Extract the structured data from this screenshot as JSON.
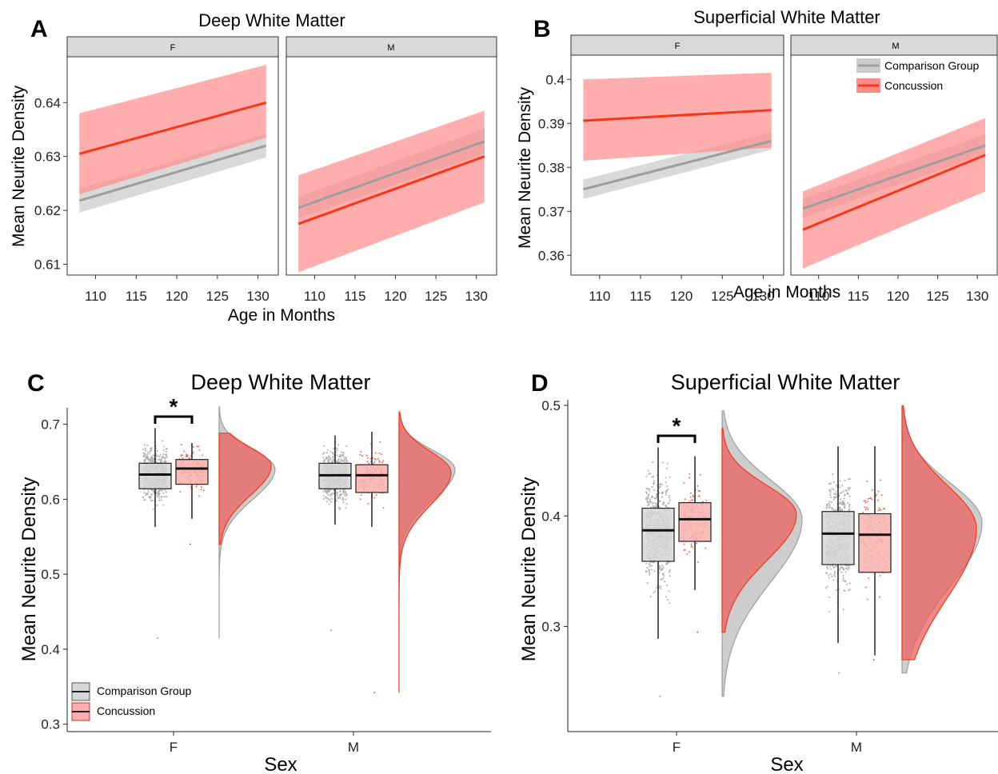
{
  "colors": {
    "comparison": "#9e9e9e",
    "comparison_fill": "#cccccc",
    "concussion": "#f8371a",
    "concussion_fill": "#ff8a8a",
    "comparison_box_fill": "#d6d6d6",
    "concussion_box_fill": "#f7b0ad",
    "strip_fill": "#d9d9d9"
  },
  "panels": {
    "A": {
      "label": "A",
      "title": "Deep White Matter",
      "ylabel": "Mean Neurite Density",
      "xlabel": "Age in Months",
      "facets": [
        "F",
        "M"
      ]
    },
    "B": {
      "label": "B",
      "title": "Superficial White Matter",
      "ylabel": "Mean Neurite Density",
      "xlabel": "Age in Months",
      "facets": [
        "F",
        "M"
      ]
    },
    "C": {
      "label": "C",
      "title": "Deep White Matter",
      "ylabel": "Mean Neurite Density",
      "xlabel": "Sex",
      "significance": "*"
    },
    "D": {
      "label": "D",
      "title": "Superficial White Matter",
      "ylabel": "Mean Neurite Density",
      "xlabel": "Sex",
      "significance": "*"
    }
  },
  "legend": {
    "comparison": "Comparison Group",
    "concussion": "Concussion"
  },
  "chart_data": [
    {
      "panel": "A",
      "type": "line",
      "title": "Deep White Matter",
      "xlabel": "Age in Months",
      "ylabel": "Mean Neurite Density",
      "xlim": [
        106.5,
        132.5
      ],
      "ylim": [
        0.608,
        0.6485
      ],
      "xticks": [
        110,
        115,
        120,
        125,
        130
      ],
      "yticks": [
        0.61,
        0.62,
        0.63,
        0.64
      ],
      "facets": [
        {
          "name": "F",
          "series": [
            {
              "name": "Comparison Group",
              "x": [
                108,
                131
              ],
              "y": [
                0.6218,
                0.632
              ],
              "lower": [
                0.6196,
                0.6298
              ],
              "upper": [
                0.624,
                0.6342
              ]
            },
            {
              "name": "Concussion",
              "x": [
                108,
                131
              ],
              "y": [
                0.6305,
                0.64
              ],
              "lower": [
                0.623,
                0.6335
              ],
              "upper": [
                0.638,
                0.647
              ]
            }
          ]
        },
        {
          "name": "M",
          "series": [
            {
              "name": "Comparison Group",
              "x": [
                108,
                131
              ],
              "y": [
                0.6205,
                0.6328
              ],
              "lower": [
                0.6185,
                0.6305
              ],
              "upper": [
                0.6225,
                0.6352
              ]
            },
            {
              "name": "Concussion",
              "x": [
                108,
                131
              ],
              "y": [
                0.6175,
                0.63
              ],
              "lower": [
                0.6085,
                0.6215
              ],
              "upper": [
                0.6265,
                0.6385
              ]
            }
          ]
        }
      ]
    },
    {
      "panel": "B",
      "type": "line",
      "title": "Superficial White Matter",
      "xlabel": "Age in Months",
      "ylabel": "Mean Neurite Density",
      "xlim": [
        106.5,
        132.5
      ],
      "ylim": [
        0.3555,
        0.4055
      ],
      "xticks": [
        110,
        115,
        120,
        125,
        130
      ],
      "yticks": [
        0.36,
        0.37,
        0.38,
        0.39,
        0.4
      ],
      "legend_position": "top-right",
      "facets": [
        {
          "name": "F",
          "series": [
            {
              "name": "Comparison Group",
              "x": [
                108,
                131
              ],
              "y": [
                0.375,
                0.386
              ],
              "lower": [
                0.3728,
                0.384
              ],
              "upper": [
                0.3772,
                0.388
              ]
            },
            {
              "name": "Concussion",
              "x": [
                108,
                131
              ],
              "y": [
                0.3906,
                0.393
              ],
              "lower": [
                0.3815,
                0.3845
              ],
              "upper": [
                0.4,
                0.4015
              ]
            }
          ]
        },
        {
          "name": "M",
          "series": [
            {
              "name": "Comparison Group",
              "x": [
                108,
                131
              ],
              "y": [
                0.3706,
                0.385
              ],
              "lower": [
                0.3685,
                0.383
              ],
              "upper": [
                0.3728,
                0.3875
              ]
            },
            {
              "name": "Concussion",
              "x": [
                108,
                131
              ],
              "y": [
                0.3658,
                0.3828
              ],
              "lower": [
                0.357,
                0.3745
              ],
              "upper": [
                0.3745,
                0.3912
              ]
            }
          ]
        }
      ]
    },
    {
      "panel": "C",
      "type": "box",
      "title": "Deep White Matter",
      "xlabel": "Sex",
      "ylabel": "Mean Neurite Density",
      "categories": [
        "F",
        "M"
      ],
      "ylim": [
        0.29,
        0.722
      ],
      "yticks": [
        0.3,
        0.4,
        0.5,
        0.6,
        0.7
      ],
      "legend_position": "bottom-left",
      "series": [
        {
          "name": "Comparison Group",
          "boxes": [
            {
              "category": "F",
              "min": 0.563,
              "q1": 0.614,
              "median": 0.633,
              "q3": 0.648,
              "max": 0.695,
              "outlier_low": 0.415
            },
            {
              "category": "M",
              "min": 0.566,
              "q1": 0.614,
              "median": 0.632,
              "q3": 0.648,
              "max": 0.685,
              "outlier_low": 0.425
            }
          ],
          "density_peak": 0.64
        },
        {
          "name": "Concussion",
          "boxes": [
            {
              "category": "F",
              "min": 0.574,
              "q1": 0.62,
              "median": 0.641,
              "q3": 0.653,
              "max": 0.675,
              "outlier_low": 0.54
            },
            {
              "category": "M",
              "min": 0.563,
              "q1": 0.609,
              "median": 0.632,
              "q3": 0.646,
              "max": 0.69,
              "outlier_low": 0.342
            }
          ],
          "density_peak": 0.64
        }
      ]
    },
    {
      "panel": "D",
      "type": "box",
      "title": "Superficial White Matter",
      "xlabel": "Sex",
      "ylabel": "Mean Neurite Density",
      "categories": [
        "F",
        "M"
      ],
      "ylim": [
        0.205,
        0.505
      ],
      "yticks": [
        0.3,
        0.4,
        0.5
      ],
      "series": [
        {
          "name": "Comparison Group",
          "boxes": [
            {
              "category": "F",
              "min": 0.289,
              "q1": 0.359,
              "median": 0.387,
              "q3": 0.407,
              "max": 0.462,
              "outlier_low": 0.237
            },
            {
              "category": "M",
              "min": 0.285,
              "q1": 0.356,
              "median": 0.384,
              "q3": 0.404,
              "max": 0.463,
              "outlier_low": 0.258
            }
          ],
          "density_peak": 0.39
        },
        {
          "name": "Concussion",
          "boxes": [
            {
              "category": "F",
              "min": 0.333,
              "q1": 0.377,
              "median": 0.397,
              "q3": 0.412,
              "max": 0.454,
              "outlier_low": 0.295
            },
            {
              "category": "M",
              "min": 0.274,
              "q1": 0.349,
              "median": 0.383,
              "q3": 0.402,
              "max": 0.463,
              "outlier_low": 0.27
            }
          ],
          "density_peak": 0.39
        }
      ]
    }
  ]
}
